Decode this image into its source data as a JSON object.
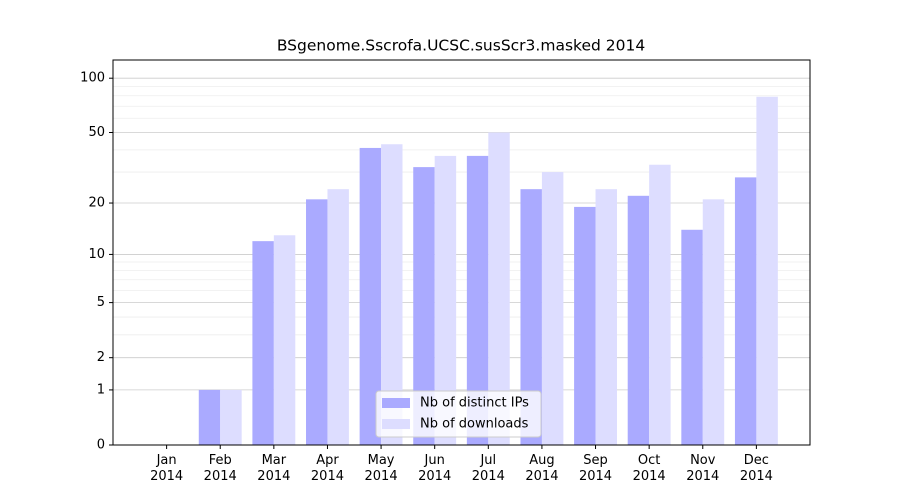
{
  "chart_data": {
    "type": "bar",
    "title": "BSgenome.Sscrofa.UCSC.susScr3.masked 2014",
    "categories": [
      "Jan\n2014",
      "Feb\n2014",
      "Mar\n2014",
      "Apr\n2014",
      "May\n2014",
      "Jun\n2014",
      "Jul\n2014",
      "Aug\n2014",
      "Sep\n2014",
      "Oct\n2014",
      "Nov\n2014",
      "Dec\n2014"
    ],
    "series": [
      {
        "name": "Nb of distinct IPs",
        "color": "#aaaaff",
        "values": [
          0,
          1,
          12,
          21,
          41,
          32,
          37,
          24,
          19,
          22,
          14,
          28
        ]
      },
      {
        "name": "Nb of downloads",
        "color": "#ddddff",
        "values": [
          0,
          1,
          13,
          24,
          43,
          37,
          50,
          30,
          24,
          33,
          21,
          79
        ]
      }
    ],
    "yscale": "log1p",
    "ylim": [
      0,
      126
    ],
    "yticks": [
      0,
      1,
      2,
      5,
      10,
      20,
      50,
      100
    ],
    "yminorticks": [
      3,
      4,
      6,
      7,
      8,
      9,
      30,
      40,
      60,
      70,
      80,
      90
    ],
    "grid": true,
    "legend": "lower center"
  }
}
